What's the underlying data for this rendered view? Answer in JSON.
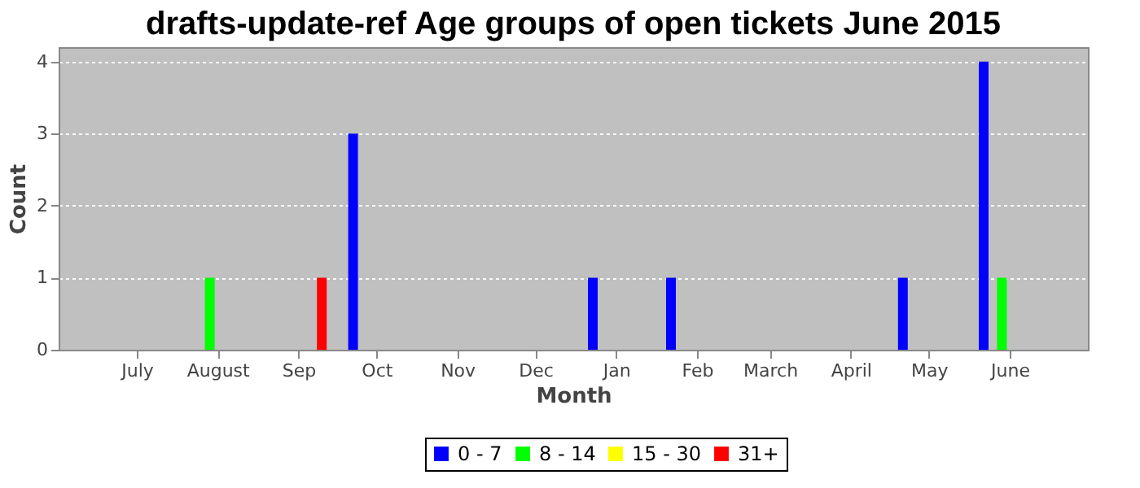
{
  "chart_data": {
    "type": "bar",
    "title": "drafts-update-ref Age groups of open tickets June 2015",
    "xlabel": "Month",
    "ylabel": "Count",
    "xlim": [
      "2014-06-01",
      "2015-07-01"
    ],
    "xticks": [
      {
        "value": "2014-07-01",
        "label": "July"
      },
      {
        "value": "2014-08-01",
        "label": "August"
      },
      {
        "value": "2014-09-01",
        "label": "Sep"
      },
      {
        "value": "2014-10-01",
        "label": "Oct"
      },
      {
        "value": "2014-11-01",
        "label": "Nov"
      },
      {
        "value": "2014-12-01",
        "label": "Dec"
      },
      {
        "value": "2015-01-01",
        "label": "Jan"
      },
      {
        "value": "2015-02-01",
        "label": "Feb"
      },
      {
        "value": "2015-03-01",
        "label": "March"
      },
      {
        "value": "2015-04-01",
        "label": "April"
      },
      {
        "value": "2015-05-01",
        "label": "May"
      },
      {
        "value": "2015-06-01",
        "label": "June"
      }
    ],
    "ylim": [
      0,
      4.2
    ],
    "yticks": [
      0,
      1,
      2,
      3,
      4
    ],
    "grid": "y",
    "legend": "bottom",
    "series": [
      {
        "name": "0 - 7",
        "color": "#0000ff",
        "x": [
          "2014-09-22",
          "2014-12-23",
          "2015-01-22",
          "2015-04-21",
          "2015-05-22"
        ],
        "values": [
          3,
          1,
          1,
          1,
          4
        ]
      },
      {
        "name": "8 - 14",
        "color": "#00ff00",
        "x": [
          "2014-07-29",
          "2015-05-29"
        ],
        "values": [
          1,
          1
        ]
      },
      {
        "name": "15 - 30",
        "color": "#ffff00"
      },
      {
        "name": "31+",
        "color": "#ff0000",
        "x": [
          "2014-09-10"
        ],
        "values": [
          1
        ]
      }
    ]
  }
}
